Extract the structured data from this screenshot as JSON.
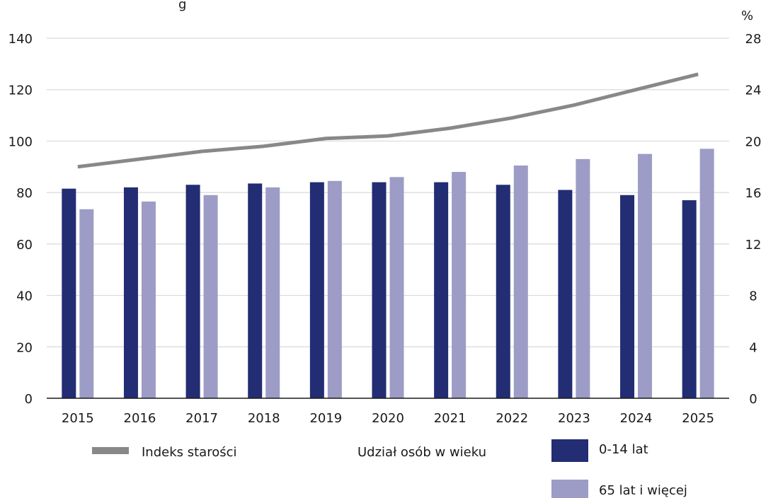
{
  "chart_data": {
    "type": "bar",
    "title": "",
    "top_fragment": "g",
    "categories": [
      "2015",
      "2016",
      "2017",
      "2018",
      "2019",
      "2020",
      "2021",
      "2022",
      "2023",
      "2024",
      "2025"
    ],
    "series": [
      {
        "name": "0-14 lat",
        "type": "bar",
        "axis": "left",
        "color": "#222d73",
        "values": [
          81.5,
          82,
          83,
          83.5,
          84,
          84,
          84,
          83,
          81,
          79,
          77
        ]
      },
      {
        "name": "65 lat i więcej",
        "type": "bar",
        "axis": "left",
        "color": "#9c9cc6",
        "values": [
          73.5,
          76.5,
          79,
          82,
          84.5,
          86,
          88,
          90.5,
          93,
          95,
          97
        ]
      },
      {
        "name": "Indeks starości",
        "type": "line",
        "axis": "right",
        "color": "#888888",
        "values": [
          18.0,
          18.6,
          19.2,
          19.6,
          20.2,
          20.4,
          21.0,
          21.8,
          22.8,
          24.0,
          25.2
        ]
      }
    ],
    "y_left": {
      "min": 0,
      "max": 140,
      "ticks": [
        "0",
        "20",
        "40",
        "60",
        "80",
        "100",
        "120",
        "140"
      ]
    },
    "y_right": {
      "min": 0,
      "max": 28,
      "ticks": [
        "0",
        "4",
        "8",
        "12",
        "16",
        "20",
        "24",
        "28"
      ],
      "unit": "%"
    },
    "grid": true,
    "legend_group_label": "Udział osób w wieku",
    "legend_placement": "bottom"
  }
}
